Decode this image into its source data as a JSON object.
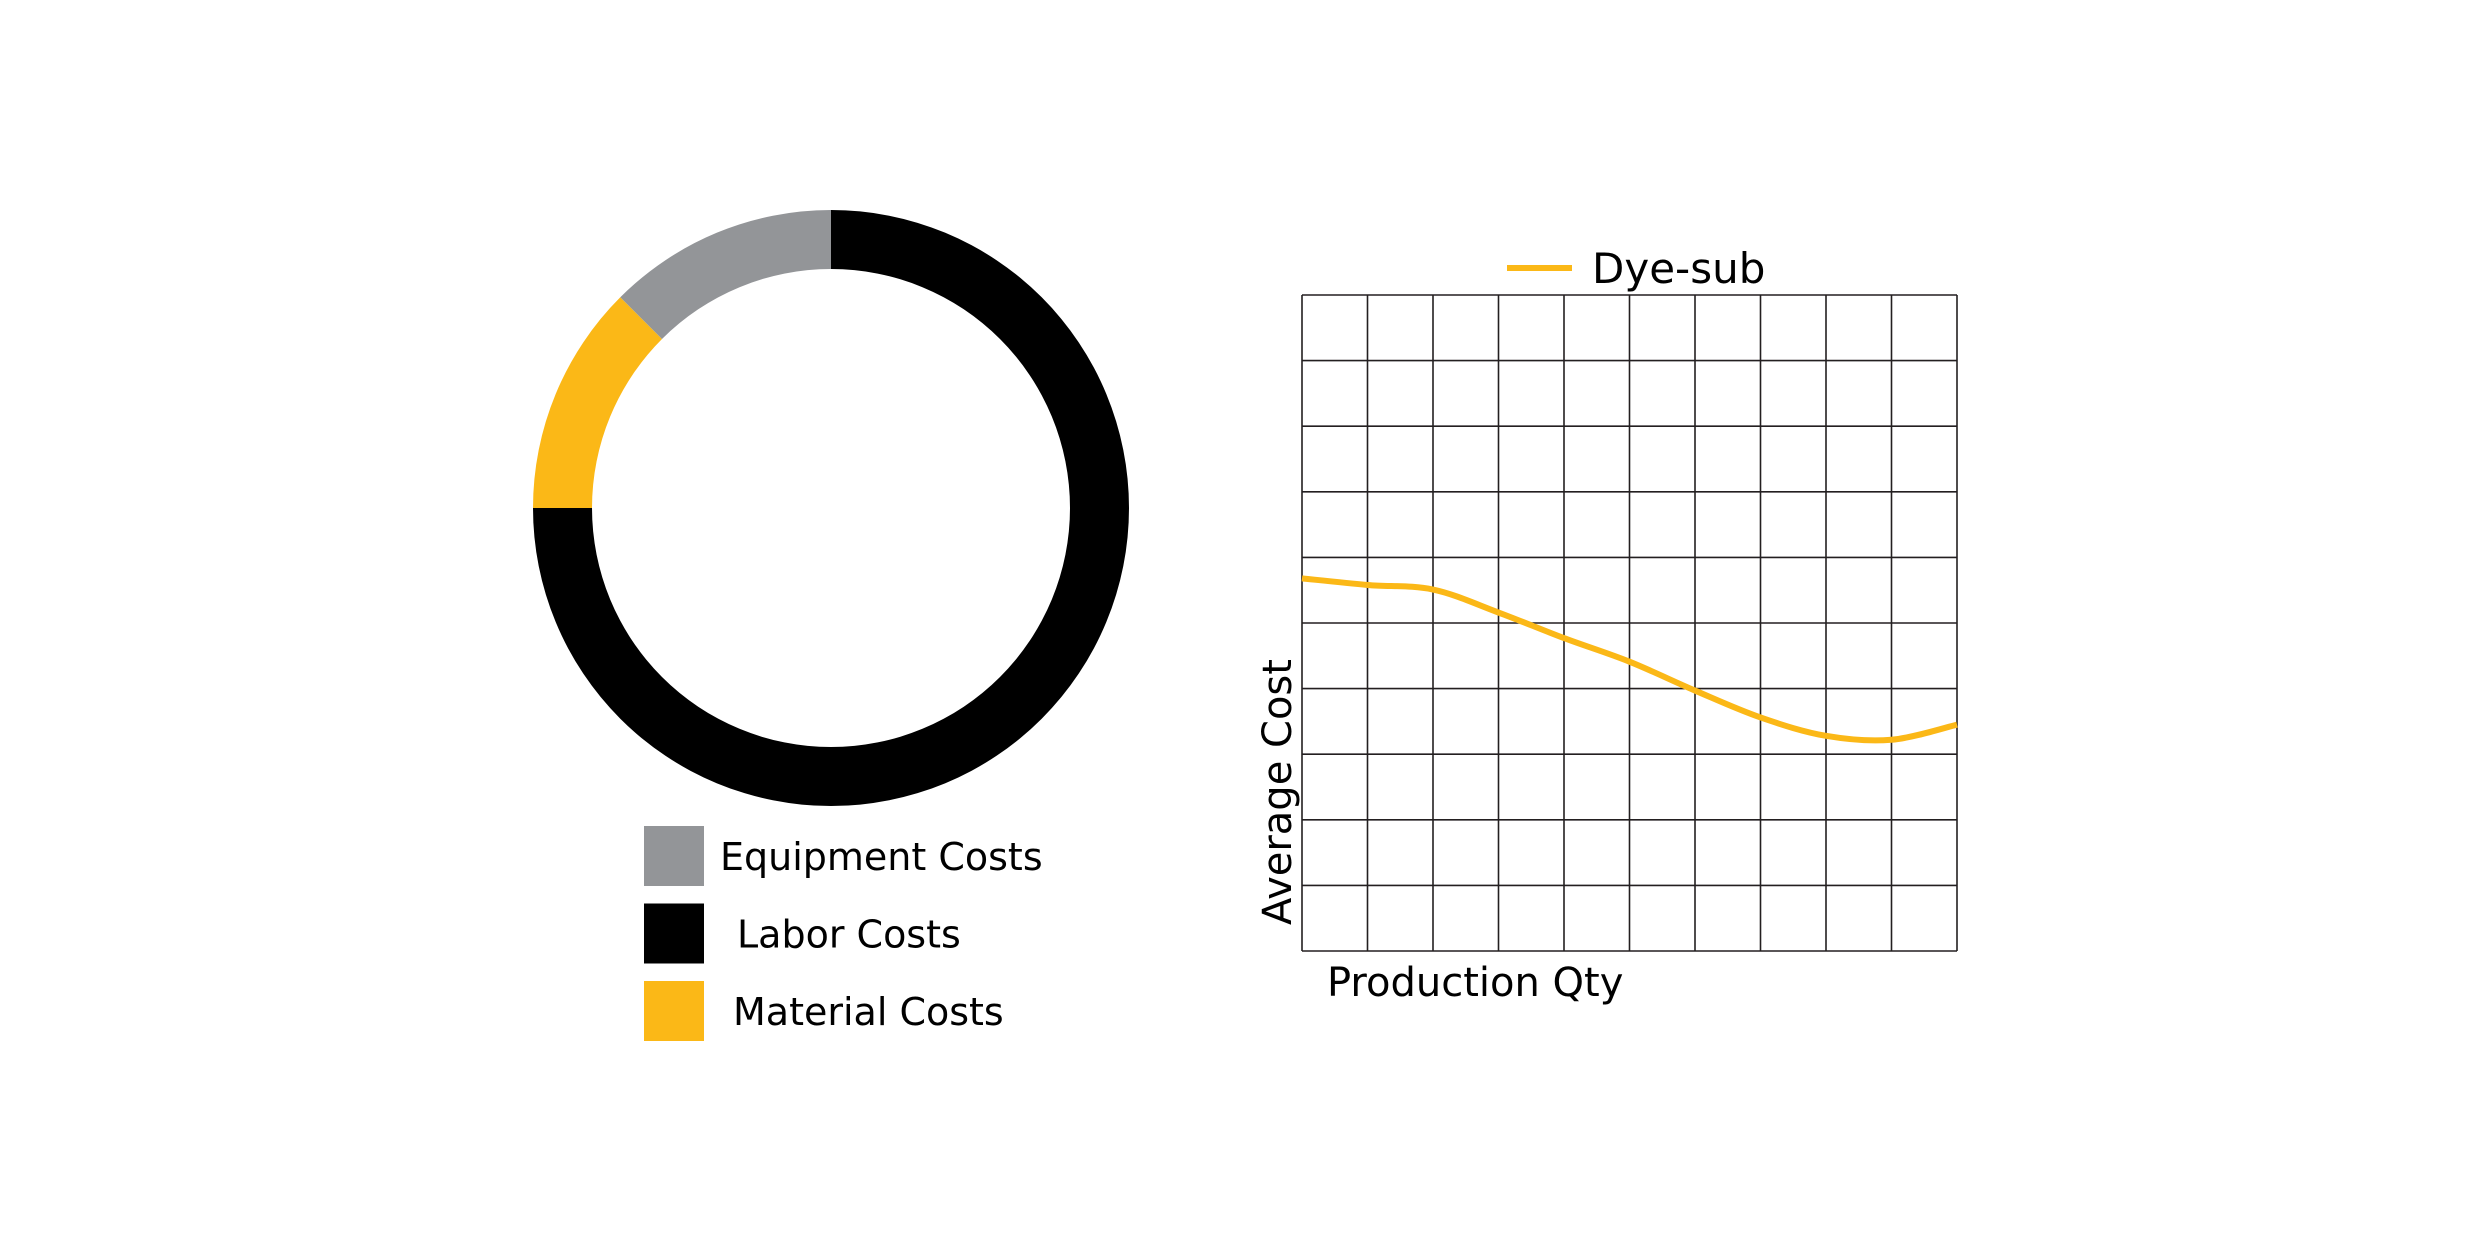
{
  "chart_data": [
    {
      "type": "pie",
      "variant": "donut",
      "title": "",
      "slices": [
        {
          "label": "Labor Costs",
          "value": 75,
          "color": "#000000"
        },
        {
          "label": "Material Costs",
          "value": 12.5,
          "color": "#FBB817"
        },
        {
          "label": "Equipment Costs",
          "value": 12.5,
          "color": "#939598"
        }
      ],
      "legend": {
        "placement": "bottom",
        "items": [
          {
            "label": "Equipment Costs",
            "color": "#939598"
          },
          {
            "label": "Labor Costs",
            "color": "#000000"
          },
          {
            "label": "Material Costs",
            "color": "#FBB817"
          }
        ]
      }
    },
    {
      "type": "line",
      "title": "",
      "xlabel": "Production Qty",
      "ylabel": "Average Cost",
      "xlim": [
        0,
        10
      ],
      "ylim": [
        0,
        10
      ],
      "grid": true,
      "legend_placement": "top",
      "series": [
        {
          "name": "Dye-sub",
          "color": "#FBB817",
          "x": [
            0,
            1,
            2,
            3,
            4,
            5,
            6,
            7,
            8,
            9,
            10
          ],
          "y": [
            5.68,
            5.58,
            5.51,
            5.16,
            4.77,
            4.41,
            3.97,
            3.56,
            3.28,
            3.22,
            3.45
          ]
        }
      ]
    }
  ]
}
